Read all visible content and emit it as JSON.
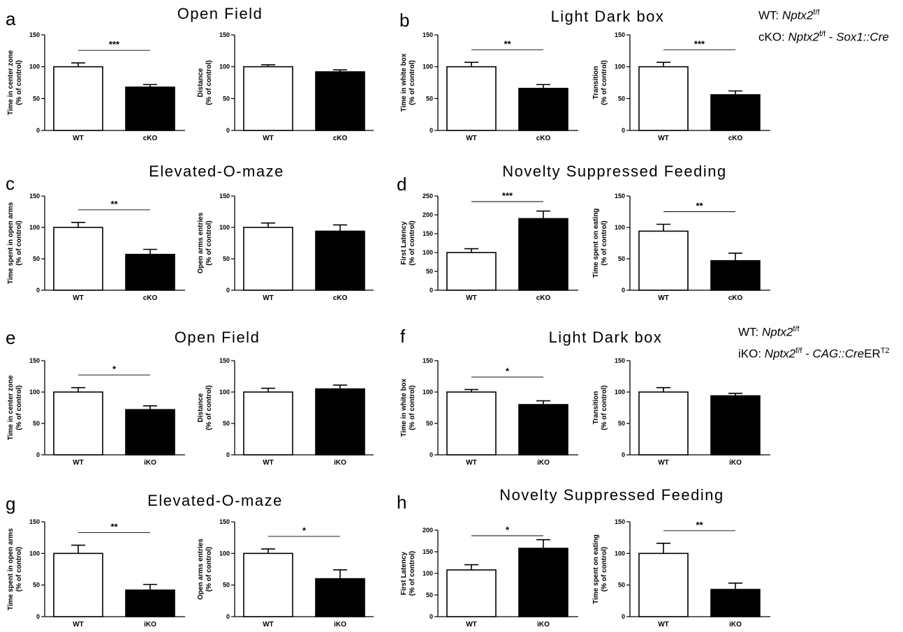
{
  "panels": {
    "a": {
      "letter": "a",
      "title": "Open Field"
    },
    "b": {
      "letter": "b",
      "title": "Light Dark box"
    },
    "c": {
      "letter": "c",
      "title": "Elevated-O-maze"
    },
    "d": {
      "letter": "d",
      "title": "Novelty Suppressed Feeding"
    },
    "e": {
      "letter": "e",
      "title": "Open Field"
    },
    "f": {
      "letter": "f",
      "title": "Light Dark box"
    },
    "g": {
      "letter": "g",
      "title": "Elevated-O-maze"
    },
    "h": {
      "letter": "h",
      "title": "Novelty Suppressed Feeding"
    }
  },
  "legends": {
    "top": {
      "wt_prefix": "WT: ",
      "wt_gene": "Nptx2",
      "wt_sup": "f/f",
      "ko_prefix": "cKO: ",
      "ko_gene": "Nptx2",
      "ko_sup": "f/f",
      "ko_dash": " - ",
      "ko_cre": "Sox1::Cre"
    },
    "bottom": {
      "wt_prefix": "WT: ",
      "wt_gene": "Nptx2",
      "wt_sup": "f/f",
      "ko_prefix": "iKO: ",
      "ko_gene": "Nptx2",
      "ko_sup": "f/f",
      "ko_dash": " - ",
      "ko_cre": "CAG::Cre",
      "ko_er": "ER",
      "ko_er_sup": "T2"
    }
  },
  "colors": {
    "wt_fill": "#ffffff",
    "ko_fill": "#000000",
    "axis": "#000000"
  },
  "chart_data": [
    {
      "type": "bar",
      "panel": "a",
      "ylabel": [
        "Time in center zone",
        "(% of control)"
      ],
      "ylim": [
        0,
        150
      ],
      "yticks": [
        0,
        50,
        100,
        150
      ],
      "categories": [
        "WT",
        "cKO"
      ],
      "values": [
        100,
        68
      ],
      "errors": [
        6,
        4
      ],
      "significance": "***"
    },
    {
      "type": "bar",
      "panel": "a",
      "ylabel": [
        "Distance",
        "(% of control)"
      ],
      "ylim": [
        0,
        150
      ],
      "yticks": [
        0,
        50,
        100,
        150
      ],
      "categories": [
        "WT",
        "cKO"
      ],
      "values": [
        100,
        92
      ],
      "errors": [
        3,
        3
      ],
      "significance": ""
    },
    {
      "type": "bar",
      "panel": "b",
      "ylabel": [
        "Time in white box",
        "(% of control)"
      ],
      "ylim": [
        0,
        150
      ],
      "yticks": [
        0,
        50,
        100,
        150
      ],
      "categories": [
        "WT",
        "cKO"
      ],
      "values": [
        100,
        66
      ],
      "errors": [
        7,
        6
      ],
      "significance": "**"
    },
    {
      "type": "bar",
      "panel": "b",
      "ylabel": [
        "Transition",
        "(% of control)"
      ],
      "ylim": [
        0,
        150
      ],
      "yticks": [
        0,
        50,
        100,
        150
      ],
      "categories": [
        "WT",
        "cKO"
      ],
      "values": [
        100,
        56
      ],
      "errors": [
        7,
        6
      ],
      "significance": "***"
    },
    {
      "type": "bar",
      "panel": "c",
      "ylabel": [
        "Time spent in open arms",
        "(% of control)"
      ],
      "ylim": [
        0,
        150
      ],
      "yticks": [
        0,
        50,
        100,
        150
      ],
      "categories": [
        "WT",
        "cKO"
      ],
      "values": [
        100,
        57
      ],
      "errors": [
        8,
        8
      ],
      "significance": "**"
    },
    {
      "type": "bar",
      "panel": "c",
      "ylabel": [
        "Open arms entries",
        "(% of control)"
      ],
      "ylim": [
        0,
        150
      ],
      "yticks": [
        0,
        50,
        100,
        150
      ],
      "categories": [
        "WT",
        "cKO"
      ],
      "values": [
        100,
        94
      ],
      "errors": [
        7,
        10
      ],
      "significance": ""
    },
    {
      "type": "bar",
      "panel": "d",
      "ylabel": [
        "First Latency",
        "(% of control)"
      ],
      "ylim": [
        0,
        250
      ],
      "yticks": [
        0,
        50,
        100,
        150,
        200,
        250
      ],
      "categories": [
        "WT",
        "cKO"
      ],
      "values": [
        100,
        190
      ],
      "errors": [
        10,
        20
      ],
      "significance": "***"
    },
    {
      "type": "bar",
      "panel": "d",
      "ylabel": [
        "Time spent on eating",
        "(% of control)"
      ],
      "ylim": [
        0,
        150
      ],
      "yticks": [
        0,
        50,
        100,
        150
      ],
      "categories": [
        "WT",
        "cKO"
      ],
      "values": [
        94,
        47
      ],
      "errors": [
        11,
        12
      ],
      "significance": "**"
    },
    {
      "type": "bar",
      "panel": "e",
      "ylabel": [
        "Time in center zone",
        "(% of control)"
      ],
      "ylim": [
        0,
        150
      ],
      "yticks": [
        0,
        50,
        100,
        150
      ],
      "categories": [
        "WT",
        "iKO"
      ],
      "values": [
        100,
        72
      ],
      "errors": [
        7,
        6
      ],
      "significance": "*"
    },
    {
      "type": "bar",
      "panel": "e",
      "ylabel": [
        "Distance",
        "(% of control)"
      ],
      "ylim": [
        0,
        150
      ],
      "yticks": [
        0,
        50,
        100,
        150
      ],
      "categories": [
        "WT",
        "iKO"
      ],
      "values": [
        100,
        105
      ],
      "errors": [
        6,
        6
      ],
      "significance": ""
    },
    {
      "type": "bar",
      "panel": "f",
      "ylabel": [
        "Time in white box",
        "(% of control)"
      ],
      "ylim": [
        0,
        150
      ],
      "yticks": [
        0,
        50,
        100,
        150
      ],
      "categories": [
        "WT",
        "iKO"
      ],
      "values": [
        100,
        80
      ],
      "errors": [
        4,
        6
      ],
      "significance": "*"
    },
    {
      "type": "bar",
      "panel": "f",
      "ylabel": [
        "Transition",
        "(% of control)"
      ],
      "ylim": [
        0,
        150
      ],
      "yticks": [
        0,
        50,
        100,
        150
      ],
      "categories": [
        "WT",
        "iKO"
      ],
      "values": [
        100,
        94
      ],
      "errors": [
        7,
        4
      ],
      "significance": ""
    },
    {
      "type": "bar",
      "panel": "g",
      "ylabel": [
        "Time spent in open arms",
        "(% of control)"
      ],
      "ylim": [
        0,
        150
      ],
      "yticks": [
        0,
        50,
        100,
        150
      ],
      "categories": [
        "WT",
        "iKO"
      ],
      "values": [
        100,
        42
      ],
      "errors": [
        13,
        9
      ],
      "significance": "**"
    },
    {
      "type": "bar",
      "panel": "g",
      "ylabel": [
        "Open arms entries",
        "(% of control)"
      ],
      "ylim": [
        0,
        150
      ],
      "yticks": [
        0,
        50,
        100,
        150
      ],
      "categories": [
        "WT",
        "iKO"
      ],
      "values": [
        100,
        60
      ],
      "errors": [
        7,
        14
      ],
      "significance": "*"
    },
    {
      "type": "bar",
      "panel": "h",
      "ylabel": [
        "First Latency",
        "(% of control)"
      ],
      "ylim": [
        0,
        200
      ],
      "yticks": [
        0,
        50,
        100,
        150,
        200
      ],
      "categories": [
        "WT",
        "iKO"
      ],
      "values": [
        108,
        158
      ],
      "errors": [
        12,
        20
      ],
      "significance": "*"
    },
    {
      "type": "bar",
      "panel": "h",
      "ylabel": [
        "Time spent on eating",
        "(% of control)"
      ],
      "ylim": [
        0,
        150
      ],
      "yticks": [
        0,
        50,
        100,
        150
      ],
      "categories": [
        "WT",
        "iKO"
      ],
      "values": [
        100,
        43
      ],
      "errors": [
        16,
        10
      ],
      "significance": "**"
    }
  ]
}
